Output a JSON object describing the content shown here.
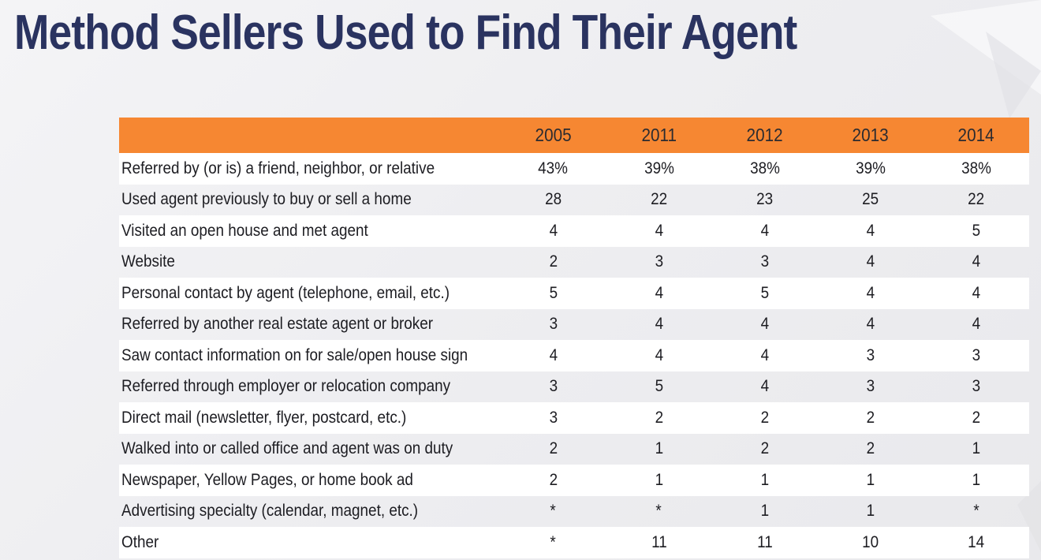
{
  "title": "Method Sellers Used to Find Their Agent",
  "chart_data": {
    "type": "table",
    "title": "Method Sellers Used to Find Their Agent",
    "columns": [
      "2005",
      "2011",
      "2012",
      "2013",
      "2014"
    ],
    "rows": [
      {
        "label": "Referred by (or is) a friend, neighbor, or relative",
        "values": [
          "43%",
          "39%",
          "38%",
          "39%",
          "38%"
        ]
      },
      {
        "label": "Used agent previously to buy or sell a home",
        "values": [
          "28",
          "22",
          "23",
          "25",
          "22"
        ]
      },
      {
        "label": "Visited an open house and met agent",
        "values": [
          "4",
          "4",
          "4",
          "4",
          "5"
        ]
      },
      {
        "label": "Website",
        "values": [
          "2",
          "3",
          "3",
          "4",
          "4"
        ]
      },
      {
        "label": "Personal contact by agent (telephone, email, etc.)",
        "values": [
          "5",
          "4",
          "5",
          "4",
          "4"
        ]
      },
      {
        "label": "Referred by another real estate agent or broker",
        "values": [
          "3",
          "4",
          "4",
          "4",
          "4"
        ]
      },
      {
        "label": "Saw contact information on for sale/open house sign",
        "values": [
          "4",
          "4",
          "4",
          "3",
          "3"
        ]
      },
      {
        "label": "Referred through employer or relocation company",
        "values": [
          "3",
          "5",
          "4",
          "3",
          "3"
        ]
      },
      {
        "label": "Direct mail (newsletter, flyer, postcard, etc.)",
        "values": [
          "3",
          "2",
          "2",
          "2",
          "2"
        ]
      },
      {
        "label": "Walked into or called office and agent was on duty",
        "values": [
          "2",
          "1",
          "2",
          "2",
          "1"
        ]
      },
      {
        "label": "Newspaper, Yellow Pages, or home book ad",
        "values": [
          "2",
          "1",
          "1",
          "1",
          "1"
        ]
      },
      {
        "label": "Advertising specialty (calendar, magnet, etc.)",
        "values": [
          "*",
          "*",
          "1",
          "1",
          "*"
        ]
      },
      {
        "label": "Other",
        "values": [
          "*",
          "11",
          "11",
          "10",
          "14"
        ]
      }
    ]
  },
  "colors": {
    "header_bg": "#f68732",
    "title": "#2a3360",
    "row_alt": "#ffffff"
  }
}
